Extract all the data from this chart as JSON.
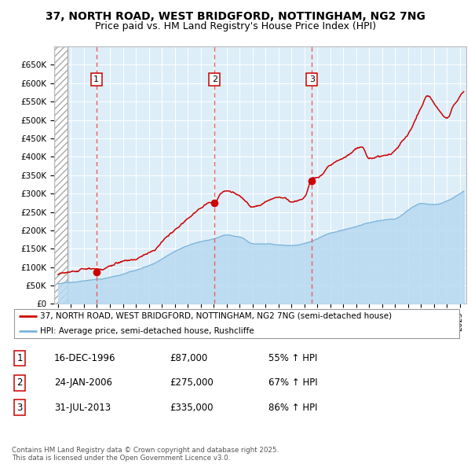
{
  "title_line1": "37, NORTH ROAD, WEST BRIDGFORD, NOTTINGHAM, NG2 7NG",
  "title_line2": "Price paid vs. HM Land Registry's House Price Index (HPI)",
  "xlim_start": 1993.7,
  "xlim_end": 2025.5,
  "ylim_min": 0,
  "ylim_max": 700000,
  "yticks": [
    0,
    50000,
    100000,
    150000,
    200000,
    250000,
    300000,
    350000,
    400000,
    450000,
    500000,
    550000,
    600000,
    650000
  ],
  "ytick_labels": [
    "£0",
    "£50K",
    "£100K",
    "£150K",
    "£200K",
    "£250K",
    "£300K",
    "£350K",
    "£400K",
    "£450K",
    "£500K",
    "£550K",
    "£600K",
    "£650K"
  ],
  "sale_dates_num": [
    1996.96,
    2006.07,
    2013.58
  ],
  "sale_prices": [
    87000,
    275000,
    335000
  ],
  "sale_labels": [
    "1",
    "2",
    "3"
  ],
  "hpi_color": "#b8d9f0",
  "hpi_line_color": "#7ab3d9",
  "price_color": "#cc0000",
  "vline_color": "#e86060",
  "background_plot": "#ddeef8",
  "legend_label_price": "37, NORTH ROAD, WEST BRIDGFORD, NOTTINGHAM, NG2 7NG (semi-detached house)",
  "legend_label_hpi": "HPI: Average price, semi-detached house, Rushcliffe",
  "table_entries": [
    {
      "num": "1",
      "date": "16-DEC-1996",
      "price": "£87,000",
      "change": "55% ↑ HPI"
    },
    {
      "num": "2",
      "date": "24-JAN-2006",
      "price": "£275,000",
      "change": "67% ↑ HPI"
    },
    {
      "num": "3",
      "date": "31-JUL-2013",
      "price": "£335,000",
      "change": "86% ↑ HPI"
    }
  ],
  "footnote": "Contains HM Land Registry data © Crown copyright and database right 2025.\nThis data is licensed under the Open Government Licence v3.0.",
  "hatch_end": 1994.75
}
